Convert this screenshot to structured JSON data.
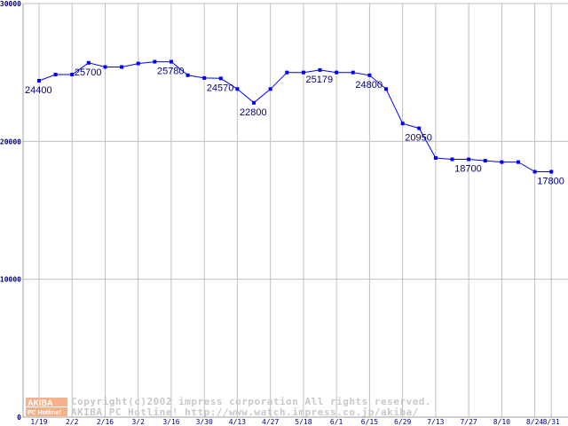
{
  "chart_data": {
    "type": "line",
    "title": "",
    "xlabel": "",
    "ylabel": "",
    "ylim": [
      0,
      30000
    ],
    "yticks": [
      "0",
      "10000",
      "20000",
      "30000"
    ],
    "ytick_values": [
      0,
      10000,
      20000,
      30000
    ],
    "grid": true,
    "color": "#0000ff",
    "x_tick_labels": [
      {
        "index": 0,
        "label": "1/19"
      },
      {
        "index": 2,
        "label": "2/2"
      },
      {
        "index": 4,
        "label": "2/16"
      },
      {
        "index": 6,
        "label": "3/2"
      },
      {
        "index": 8,
        "label": "3/16"
      },
      {
        "index": 10,
        "label": "3/30"
      },
      {
        "index": 12,
        "label": "4/13"
      },
      {
        "index": 14,
        "label": "4/27"
      },
      {
        "index": 16,
        "label": "5/18"
      },
      {
        "index": 18,
        "label": "6/1"
      },
      {
        "index": 20,
        "label": "6/15"
      },
      {
        "index": 22,
        "label": "6/29"
      },
      {
        "index": 24,
        "label": "7/13"
      },
      {
        "index": 26,
        "label": "7/27"
      },
      {
        "index": 28,
        "label": "8/10"
      },
      {
        "index": 30,
        "label": "8/24"
      },
      {
        "index": 31,
        "label": "8/31"
      }
    ],
    "values": [
      24400,
      24850,
      24850,
      25700,
      25400,
      25400,
      25650,
      25780,
      25780,
      24800,
      24600,
      24570,
      23800,
      22800,
      23800,
      25000,
      25000,
      25179,
      25000,
      25000,
      24800,
      23800,
      21300,
      20950,
      18800,
      18700,
      18700,
      18600,
      18500,
      18500,
      17800,
      17800
    ],
    "data_labels": [
      {
        "index": 0,
        "label": "24400"
      },
      {
        "index": 3,
        "label": "25700"
      },
      {
        "index": 8,
        "label": "25780"
      },
      {
        "index": 11,
        "label": "24570"
      },
      {
        "index": 13,
        "label": "22800"
      },
      {
        "index": 17,
        "label": "25179"
      },
      {
        "index": 20,
        "label": "24800"
      },
      {
        "index": 23,
        "label": "20950"
      },
      {
        "index": 26,
        "label": "18700"
      },
      {
        "index": 31,
        "label": "17800"
      }
    ]
  },
  "watermark": {
    "logo_top": "AKIBA",
    "logo_bottom": "PC Hotline!",
    "line1": "Copyright(c)2002 impress corporation All rights reserved.",
    "line2": "AKIBA PC Hotline!  http://www.watch.impress.co.jp/akiba/"
  }
}
